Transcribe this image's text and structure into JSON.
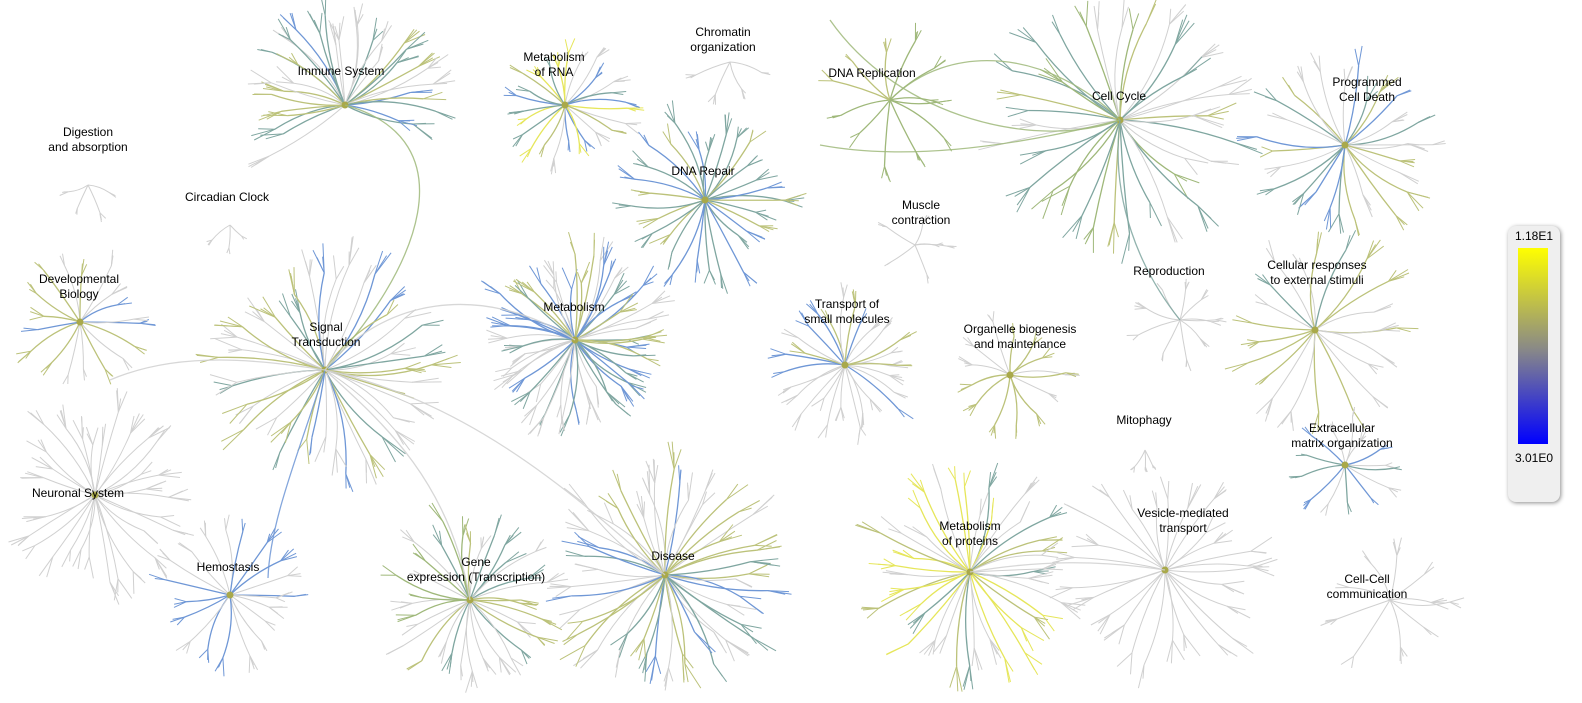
{
  "pathways": [
    {
      "id": "immune",
      "name": "Immune System"
    },
    {
      "id": "digestion",
      "name": "Digestion\nand absorption"
    },
    {
      "id": "circadian",
      "name": "Circadian Clock"
    },
    {
      "id": "developmental",
      "name": "Developmental\nBiology"
    },
    {
      "id": "signal",
      "name": "Signal\nTransduction"
    },
    {
      "id": "neuronal",
      "name": "Neuronal System"
    },
    {
      "id": "hemostasis",
      "name": "Hemostasis"
    },
    {
      "id": "gene",
      "name": "Gene\nexpression (Transcription)"
    },
    {
      "id": "rna",
      "name": "Metabolism\nof RNA"
    },
    {
      "id": "chromatin",
      "name": "Chromatin\norganization"
    },
    {
      "id": "dnarepair",
      "name": "DNA Repair"
    },
    {
      "id": "metabolism",
      "name": "Metabolism"
    },
    {
      "id": "disease",
      "name": "Disease"
    },
    {
      "id": "dnareplication",
      "name": "DNA Replication"
    },
    {
      "id": "cellcycle",
      "name": "Cell Cycle"
    },
    {
      "id": "muscle",
      "name": "Muscle\ncontraction"
    },
    {
      "id": "transport",
      "name": "Transport of\nsmall molecules"
    },
    {
      "id": "organelle",
      "name": "Organelle biogenesis\nand maintenance"
    },
    {
      "id": "reproduction",
      "name": "Reproduction"
    },
    {
      "id": "mitophagy",
      "name": "Mitophagy"
    },
    {
      "id": "proteins",
      "name": "Metabolism\nof proteins"
    },
    {
      "id": "vesicle",
      "name": "Vesicle-mediated\ntransport"
    },
    {
      "id": "death",
      "name": "Programmed\nCell Death"
    },
    {
      "id": "cellular",
      "name": "Cellular responses\nto external stimuli"
    },
    {
      "id": "ecm",
      "name": "Extracellular\nmatrix organization"
    },
    {
      "id": "cellcell",
      "name": "Cell-Cell\ncommunication"
    }
  ],
  "legend": {
    "max_label": "1.18E1",
    "min_label": "3.01E0",
    "color_max": "#ffff00",
    "color_mid": "#888888",
    "color_min": "#0000ff"
  },
  "colors": {
    "grey": "#d0d0d0",
    "dark_grey": "#b8b8b8",
    "green": "#9fb87a",
    "teal": "#7fa6a0",
    "blue": "#6f97d6",
    "yellow": "#e6e65a",
    "olive": "#bcc27a"
  }
}
